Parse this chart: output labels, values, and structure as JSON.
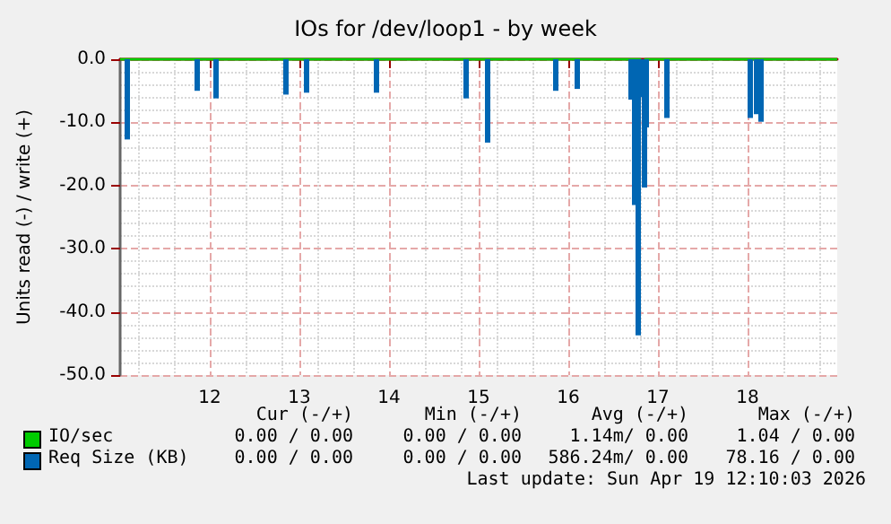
{
  "chart_data": {
    "type": "bar",
    "title": "IOs for /dev/loop1 - by week",
    "ylabel": "Units read (-) / write (+)",
    "xlim": [
      11,
      19
    ],
    "xticks": [
      12,
      13,
      14,
      15,
      16,
      17,
      18
    ],
    "ylim": [
      -50,
      0
    ],
    "yticks": [
      {
        "value": -50,
        "label": "-50.0"
      },
      {
        "value": -40,
        "label": "-40.0"
      },
      {
        "value": -30,
        "label": "-30.0"
      },
      {
        "value": -20,
        "label": "-20.0"
      },
      {
        "value": -10,
        "label": "-10.0"
      },
      {
        "value": 0,
        "label": "0.0"
      }
    ],
    "grid": true,
    "legend": "bottom",
    "series": [
      {
        "name": "IO/sec",
        "type": "line",
        "color": "#00cc00",
        "x": [
          11,
          16.8,
          16.83,
          16.86,
          19
        ],
        "values": [
          0,
          0,
          -1,
          0,
          0
        ]
      },
      {
        "name": "Req Size (KB)",
        "color": "#0066b3",
        "x": [
          11.08,
          11.86,
          12.07,
          12.85,
          13.08,
          13.86,
          14.86,
          15.1,
          15.86,
          16.1,
          16.7,
          16.74,
          16.78,
          16.81,
          16.85,
          16.87,
          17.1,
          18.03,
          18.1,
          18.15
        ],
        "values": [
          -12.7,
          -5,
          -6.2,
          -5.6,
          -5.3,
          -5.3,
          -6.2,
          -13.2,
          -5,
          -4.7,
          -6.4,
          -23.1,
          -43.7,
          -6,
          -20.3,
          -10.8,
          -9.3,
          -9.3,
          -8.7,
          -9.9
        ]
      }
    ],
    "annotations": [
      "Cur (-/+)",
      "Min (-/+)",
      "Avg (-/+)",
      "Max (-/+)",
      "0.00 / 0.00",
      "0.00 / 0.00",
      "1.14m/ 0.00",
      "1.04 / 0.00",
      "0.00 / 0.00",
      "0.00 / 0.00",
      "586.24m/ 0.00",
      "78.16 / 0.00",
      "Last update: Sun Apr 19 12:10:03 2026"
    ]
  }
}
